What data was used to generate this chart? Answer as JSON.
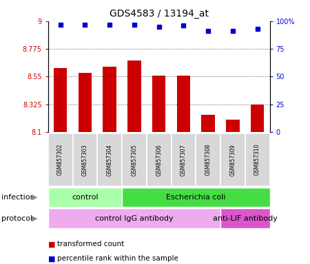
{
  "title": "GDS4583 / 13194_at",
  "samples": [
    "GSM857302",
    "GSM857303",
    "GSM857304",
    "GSM857305",
    "GSM857306",
    "GSM857307",
    "GSM857308",
    "GSM857309",
    "GSM857310"
  ],
  "bar_values": [
    8.62,
    8.58,
    8.63,
    8.68,
    8.56,
    8.56,
    8.24,
    8.2,
    8.325
  ],
  "percentile_values": [
    97,
    97,
    97,
    97,
    95,
    96,
    91,
    91,
    93
  ],
  "ylim_min": 8.1,
  "ylim_max": 9.0,
  "yticks_left": [
    8.1,
    8.325,
    8.55,
    8.775,
    9
  ],
  "yticks_right": [
    0,
    25,
    50,
    75,
    100
  ],
  "bar_color": "#cc0000",
  "dot_color": "#0000cc",
  "bar_width": 0.55,
  "infection_groups": [
    {
      "label": "control",
      "start": 0,
      "end": 3,
      "color": "#aaffaa"
    },
    {
      "label": "Escherichia coli",
      "start": 3,
      "end": 9,
      "color": "#44dd44"
    }
  ],
  "protocol_groups": [
    {
      "label": "control IgG antibody",
      "start": 0,
      "end": 7,
      "color": "#f0aaee"
    },
    {
      "label": "anti-LIF antibody",
      "start": 7,
      "end": 9,
      "color": "#dd55cc"
    }
  ],
  "infection_label": "infection",
  "protocol_label": "protocol",
  "legend_bar_label": "transformed count",
  "legend_dot_label": "percentile rank within the sample",
  "gridline_color": "#555555",
  "bg_color": "#ffffff"
}
